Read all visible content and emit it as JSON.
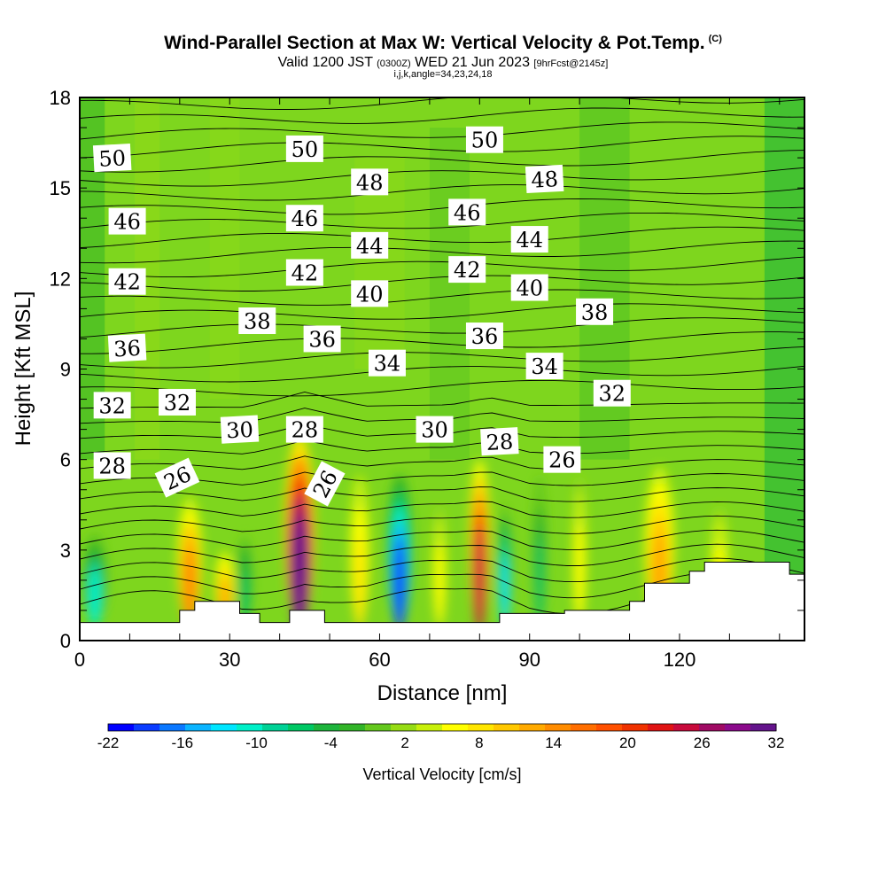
{
  "chart_data": {
    "type": "heatmap",
    "title": "Wind-Parallel Section at Max W: Vertical Velocity & Pot.Temp.",
    "title_mark": "(C)",
    "subtitle_main": "Valid 1200 JST",
    "subtitle_utc": "(0300Z)",
    "subtitle_date": "WED 21 Jun 2023",
    "subtitle_fcst": "[9hrFcst@2145z]",
    "subtitle2": "i,j,k,angle=34,23,24,18",
    "xlabel": "Distance [nm]",
    "ylabel": "Height [Kft MSL]",
    "xlim": [
      0,
      145
    ],
    "ylim": [
      0,
      18
    ],
    "x_ticks": [
      "0",
      "30",
      "60",
      "90",
      "120"
    ],
    "x_tick_values": [
      0,
      30,
      60,
      90,
      120
    ],
    "y_ticks": [
      "0",
      "3",
      "6",
      "9",
      "12",
      "15",
      "18"
    ],
    "y_tick_values": [
      0,
      3,
      6,
      9,
      12,
      15,
      18
    ],
    "colorbar": {
      "label": "Vertical Velocity [cm/s]",
      "tick_labels": [
        "-22",
        "-16",
        "-10",
        "-4",
        "2",
        "8",
        "14",
        "20",
        "26",
        "32"
      ],
      "range": [
        -22,
        32
      ],
      "colors": [
        "#0000ff",
        "#0a3cff",
        "#0a78ff",
        "#0ab4ff",
        "#00e6ff",
        "#00f0c8",
        "#00d296",
        "#00c864",
        "#1eb43c",
        "#32b428",
        "#64c81e",
        "#96dc14",
        "#c8f00a",
        "#ffff00",
        "#ffe600",
        "#ffc800",
        "#ffaa00",
        "#ff8c00",
        "#ff6e00",
        "#ff5000",
        "#f03200",
        "#e01414",
        "#c80a3c",
        "#a00a64",
        "#8c0a8c",
        "#64148c"
      ]
    },
    "vertical_velocity_columns": [
      {
        "x": 3,
        "w": 5,
        "ytop": 3.6,
        "value": -10
      },
      {
        "x": 22,
        "w": 5,
        "ytop": 4.8,
        "value": 14
      },
      {
        "x": 29,
        "w": 4,
        "ytop": 3.0,
        "value": 12
      },
      {
        "x": 33,
        "w": 3,
        "ytop": 3.5,
        "value": -7
      },
      {
        "x": 44,
        "w": 6,
        "ytop": 6.8,
        "value": 32
      },
      {
        "x": 56,
        "w": 4,
        "ytop": 5.5,
        "value": 8
      },
      {
        "x": 64,
        "w": 5,
        "ytop": 5.5,
        "value": -19
      },
      {
        "x": 72,
        "w": 3,
        "ytop": 4.5,
        "value": 6
      },
      {
        "x": 80,
        "w": 4,
        "ytop": 6.0,
        "value": 24
      },
      {
        "x": 85,
        "w": 3,
        "ytop": 4.5,
        "value": -12
      },
      {
        "x": 92,
        "w": 3,
        "ytop": 5.5,
        "value": -6
      },
      {
        "x": 100,
        "w": 3,
        "ytop": 5.5,
        "value": 6
      },
      {
        "x": 116,
        "w": 6,
        "ytop": 5.8,
        "value": 12
      },
      {
        "x": 128,
        "w": 4,
        "ytop": 4.5,
        "value": 6
      }
    ],
    "terrain": [
      {
        "x": 0,
        "y": 0.6
      },
      {
        "x": 20,
        "y": 0.6
      },
      {
        "x": 20,
        "y": 1.0
      },
      {
        "x": 23,
        "y": 1.0
      },
      {
        "x": 23,
        "y": 1.3
      },
      {
        "x": 32,
        "y": 1.3
      },
      {
        "x": 32,
        "y": 0.9
      },
      {
        "x": 36,
        "y": 0.9
      },
      {
        "x": 36,
        "y": 0.6
      },
      {
        "x": 42,
        "y": 0.6
      },
      {
        "x": 42,
        "y": 1.0
      },
      {
        "x": 49,
        "y": 1.0
      },
      {
        "x": 49,
        "y": 0.6
      },
      {
        "x": 84,
        "y": 0.6
      },
      {
        "x": 84,
        "y": 0.9
      },
      {
        "x": 97,
        "y": 0.9
      },
      {
        "x": 97,
        "y": 1.0
      },
      {
        "x": 110,
        "y": 1.0
      },
      {
        "x": 110,
        "y": 1.3
      },
      {
        "x": 113,
        "y": 1.3
      },
      {
        "x": 113,
        "y": 1.9
      },
      {
        "x": 122,
        "y": 1.9
      },
      {
        "x": 122,
        "y": 2.3
      },
      {
        "x": 125,
        "y": 2.3
      },
      {
        "x": 125,
        "y": 2.6
      },
      {
        "x": 142,
        "y": 2.6
      },
      {
        "x": 142,
        "y": 2.2
      },
      {
        "x": 145,
        "y": 2.2
      }
    ],
    "pot_temp_contour_labels": [
      {
        "text": "50",
        "x": 6.5,
        "y": 16.0,
        "rot": -3
      },
      {
        "text": "50",
        "x": 45,
        "y": 16.3,
        "rot": 0
      },
      {
        "text": "50",
        "x": 81,
        "y": 16.6,
        "rot": 0
      },
      {
        "text": "48",
        "x": 58,
        "y": 15.2,
        "rot": 0
      },
      {
        "text": "48",
        "x": 93,
        "y": 15.3,
        "rot": -3
      },
      {
        "text": "46",
        "x": 9.5,
        "y": 13.9,
        "rot": 0
      },
      {
        "text": "46",
        "x": 45,
        "y": 14.0,
        "rot": 0
      },
      {
        "text": "46",
        "x": 77.5,
        "y": 14.2,
        "rot": 0
      },
      {
        "text": "44",
        "x": 58,
        "y": 13.1,
        "rot": 0
      },
      {
        "text": "44",
        "x": 90,
        "y": 13.3,
        "rot": 0
      },
      {
        "text": "42",
        "x": 9.5,
        "y": 11.9,
        "rot": 0
      },
      {
        "text": "42",
        "x": 45,
        "y": 12.2,
        "rot": 0
      },
      {
        "text": "42",
        "x": 77.5,
        "y": 12.3,
        "rot": 0
      },
      {
        "text": "40",
        "x": 58,
        "y": 11.5,
        "rot": 0
      },
      {
        "text": "40",
        "x": 90,
        "y": 11.7,
        "rot": 0
      },
      {
        "text": "38",
        "x": 35.5,
        "y": 10.6,
        "rot": 0
      },
      {
        "text": "38",
        "x": 103,
        "y": 10.9,
        "rot": 0
      },
      {
        "text": "36",
        "x": 9.5,
        "y": 9.7,
        "rot": -3
      },
      {
        "text": "36",
        "x": 48.5,
        "y": 10.0,
        "rot": 0
      },
      {
        "text": "36",
        "x": 81,
        "y": 10.1,
        "rot": 0
      },
      {
        "text": "34",
        "x": 61.5,
        "y": 9.2,
        "rot": 0
      },
      {
        "text": "34",
        "x": 93,
        "y": 9.1,
        "rot": 0
      },
      {
        "text": "32",
        "x": 6.5,
        "y": 7.8,
        "rot": 0
      },
      {
        "text": "32",
        "x": 19.5,
        "y": 7.9,
        "rot": 0
      },
      {
        "text": "32",
        "x": 106.5,
        "y": 8.2,
        "rot": 0
      },
      {
        "text": "30",
        "x": 32,
        "y": 7.0,
        "rot": -3
      },
      {
        "text": "30",
        "x": 71,
        "y": 7.0,
        "rot": 0
      },
      {
        "text": "28",
        "x": 6.5,
        "y": 5.8,
        "rot": 0
      },
      {
        "text": "28",
        "x": 45,
        "y": 7.0,
        "rot": 0
      },
      {
        "text": "28",
        "x": 84,
        "y": 6.6,
        "rot": -3
      },
      {
        "text": "26",
        "x": 19.5,
        "y": 5.4,
        "rot": -25
      },
      {
        "text": "26",
        "x": 49,
        "y": 5.2,
        "rot": -62
      },
      {
        "text": "26",
        "x": 96.5,
        "y": 6.0,
        "rot": 0
      }
    ]
  }
}
